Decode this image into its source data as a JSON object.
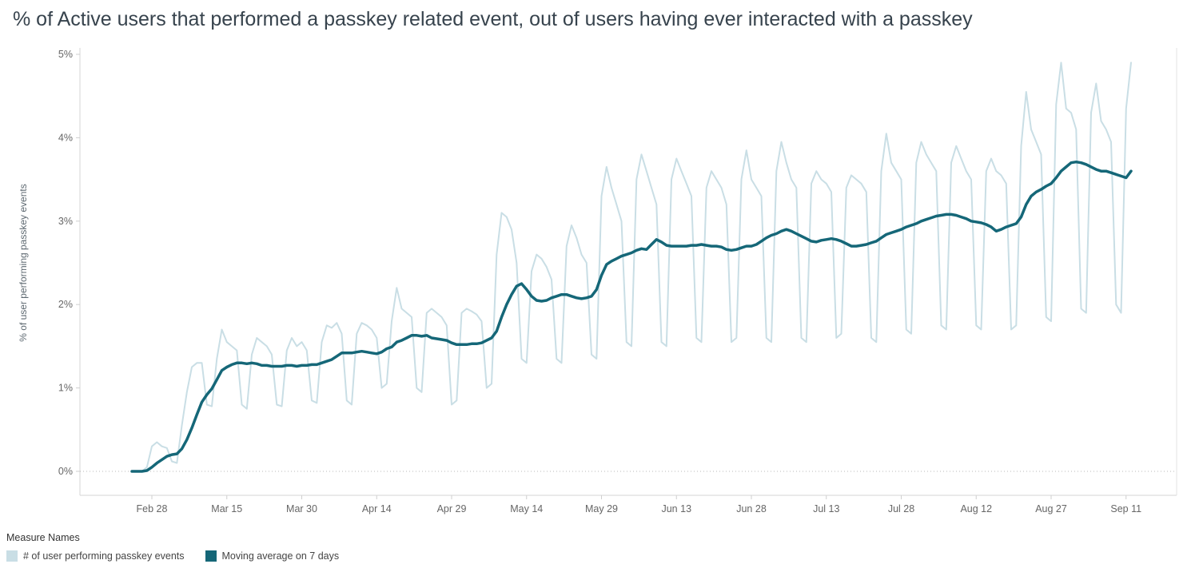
{
  "title": "% of Active users that performed a passkey related event, out of users having ever interacted with a passkey",
  "y_axis_label": "% of user performing passkey events",
  "legend": {
    "title": "Measure Names",
    "items": [
      {
        "label": "# of user performing passkey events",
        "color": "#c9dee5"
      },
      {
        "label": "Moving average on 7 days",
        "color": "#156778"
      }
    ]
  },
  "chart_data": {
    "type": "line",
    "title": "% of Active users that performed a passkey related event, out of users having ever interacted with a passkey",
    "ylabel": "% of user performing passkey events",
    "ylim": [
      0,
      5
    ],
    "y_ticks": [
      "0%",
      "1%",
      "2%",
      "3%",
      "4%",
      "5%"
    ],
    "grid": "zero-line-dotted-only",
    "legend_position": "bottom-left",
    "x_months": [
      [
        "Feb",
        24,
        28
      ],
      [
        "Mar",
        1,
        31
      ],
      [
        "Apr",
        1,
        30
      ],
      [
        "May",
        1,
        31
      ],
      [
        "Jun",
        1,
        30
      ],
      [
        "Jul",
        1,
        31
      ],
      [
        "Aug",
        1,
        31
      ],
      [
        "Sep",
        1,
        12
      ]
    ],
    "x_tick_labels": [
      "Feb 28",
      "Mar 15",
      "Mar 30",
      "Apr 14",
      "Apr 29",
      "May 14",
      "May 29",
      "Jun 13",
      "Jun 28",
      "Jul 13",
      "Jul 28",
      "Aug 12",
      "Aug 27",
      "Sep 11"
    ],
    "series": [
      {
        "name": "# of user performing passkey events",
        "color": "#c9dee5",
        "values": [
          0,
          0,
          0,
          0.05,
          0.3,
          0.35,
          0.3,
          0.28,
          0.12,
          0.1,
          0.55,
          0.95,
          1.25,
          1.3,
          1.3,
          0.8,
          0.78,
          1.35,
          1.7,
          1.55,
          1.5,
          1.45,
          0.8,
          0.75,
          1.4,
          1.6,
          1.55,
          1.5,
          1.4,
          0.8,
          0.78,
          1.45,
          1.6,
          1.5,
          1.55,
          1.45,
          0.85,
          0.82,
          1.55,
          1.75,
          1.72,
          1.78,
          1.65,
          0.85,
          0.8,
          1.65,
          1.78,
          1.75,
          1.7,
          1.6,
          1.0,
          1.05,
          1.8,
          2.2,
          1.95,
          1.9,
          1.85,
          1.0,
          0.95,
          1.9,
          1.95,
          1.9,
          1.85,
          1.75,
          0.8,
          0.85,
          1.9,
          1.95,
          1.92,
          1.88,
          1.8,
          1.0,
          1.05,
          2.6,
          3.1,
          3.05,
          2.9,
          2.5,
          1.35,
          1.3,
          2.4,
          2.6,
          2.55,
          2.45,
          2.3,
          1.35,
          1.3,
          2.7,
          2.95,
          2.8,
          2.6,
          2.5,
          1.4,
          1.35,
          3.3,
          3.65,
          3.4,
          3.2,
          3.0,
          1.55,
          1.5,
          3.5,
          3.8,
          3.6,
          3.4,
          3.2,
          1.55,
          1.5,
          3.5,
          3.75,
          3.6,
          3.45,
          3.3,
          1.6,
          1.55,
          3.4,
          3.6,
          3.5,
          3.4,
          3.2,
          1.55,
          1.6,
          3.5,
          3.85,
          3.5,
          3.4,
          3.3,
          1.6,
          1.55,
          3.6,
          3.95,
          3.7,
          3.5,
          3.4,
          1.6,
          1.55,
          3.45,
          3.6,
          3.5,
          3.45,
          3.35,
          1.6,
          1.65,
          3.4,
          3.55,
          3.5,
          3.45,
          3.35,
          1.6,
          1.55,
          3.6,
          4.05,
          3.7,
          3.6,
          3.5,
          1.7,
          1.65,
          3.7,
          3.95,
          3.8,
          3.7,
          3.6,
          1.75,
          1.7,
          3.7,
          3.9,
          3.75,
          3.6,
          3.5,
          1.75,
          1.7,
          3.6,
          3.75,
          3.6,
          3.55,
          3.45,
          1.7,
          1.75,
          3.9,
          4.55,
          4.1,
          3.95,
          3.8,
          1.85,
          1.8,
          4.4,
          4.9,
          4.35,
          4.3,
          4.1,
          1.95,
          1.9,
          4.3,
          4.65,
          4.2,
          4.1,
          3.95,
          2.0,
          1.9,
          4.35,
          4.9
        ]
      },
      {
        "name": "Moving average on 7 days",
        "color": "#156778",
        "values": [
          0,
          0,
          0,
          0.01,
          0.05,
          0.1,
          0.14,
          0.18,
          0.2,
          0.21,
          0.27,
          0.38,
          0.52,
          0.68,
          0.83,
          0.92,
          0.99,
          1.1,
          1.21,
          1.25,
          1.28,
          1.3,
          1.3,
          1.29,
          1.3,
          1.29,
          1.27,
          1.27,
          1.26,
          1.26,
          1.26,
          1.27,
          1.27,
          1.26,
          1.27,
          1.27,
          1.28,
          1.28,
          1.3,
          1.32,
          1.34,
          1.38,
          1.42,
          1.42,
          1.42,
          1.43,
          1.44,
          1.43,
          1.42,
          1.41,
          1.43,
          1.47,
          1.49,
          1.55,
          1.57,
          1.6,
          1.63,
          1.63,
          1.62,
          1.63,
          1.6,
          1.59,
          1.58,
          1.57,
          1.54,
          1.52,
          1.52,
          1.52,
          1.53,
          1.53,
          1.54,
          1.57,
          1.6,
          1.68,
          1.85,
          2.0,
          2.12,
          2.22,
          2.25,
          2.18,
          2.1,
          2.05,
          2.04,
          2.05,
          2.08,
          2.1,
          2.12,
          2.12,
          2.1,
          2.08,
          2.07,
          2.08,
          2.1,
          2.18,
          2.35,
          2.48,
          2.52,
          2.55,
          2.58,
          2.6,
          2.62,
          2.65,
          2.67,
          2.66,
          2.72,
          2.78,
          2.75,
          2.71,
          2.7,
          2.7,
          2.7,
          2.7,
          2.71,
          2.71,
          2.72,
          2.71,
          2.7,
          2.7,
          2.69,
          2.66,
          2.65,
          2.66,
          2.68,
          2.7,
          2.7,
          2.72,
          2.76,
          2.8,
          2.83,
          2.85,
          2.88,
          2.9,
          2.88,
          2.85,
          2.82,
          2.79,
          2.76,
          2.75,
          2.77,
          2.78,
          2.79,
          2.78,
          2.76,
          2.73,
          2.7,
          2.7,
          2.71,
          2.72,
          2.74,
          2.76,
          2.8,
          2.84,
          2.86,
          2.88,
          2.9,
          2.93,
          2.95,
          2.97,
          3.0,
          3.02,
          3.04,
          3.06,
          3.07,
          3.08,
          3.08,
          3.07,
          3.05,
          3.03,
          3.0,
          2.99,
          2.98,
          2.96,
          2.93,
          2.88,
          2.9,
          2.93,
          2.95,
          2.97,
          3.05,
          3.2,
          3.3,
          3.35,
          3.38,
          3.42,
          3.45,
          3.52,
          3.6,
          3.65,
          3.7,
          3.71,
          3.7,
          3.68,
          3.65,
          3.62,
          3.6,
          3.6,
          3.58,
          3.56,
          3.54,
          3.52,
          3.6
        ]
      }
    ]
  }
}
